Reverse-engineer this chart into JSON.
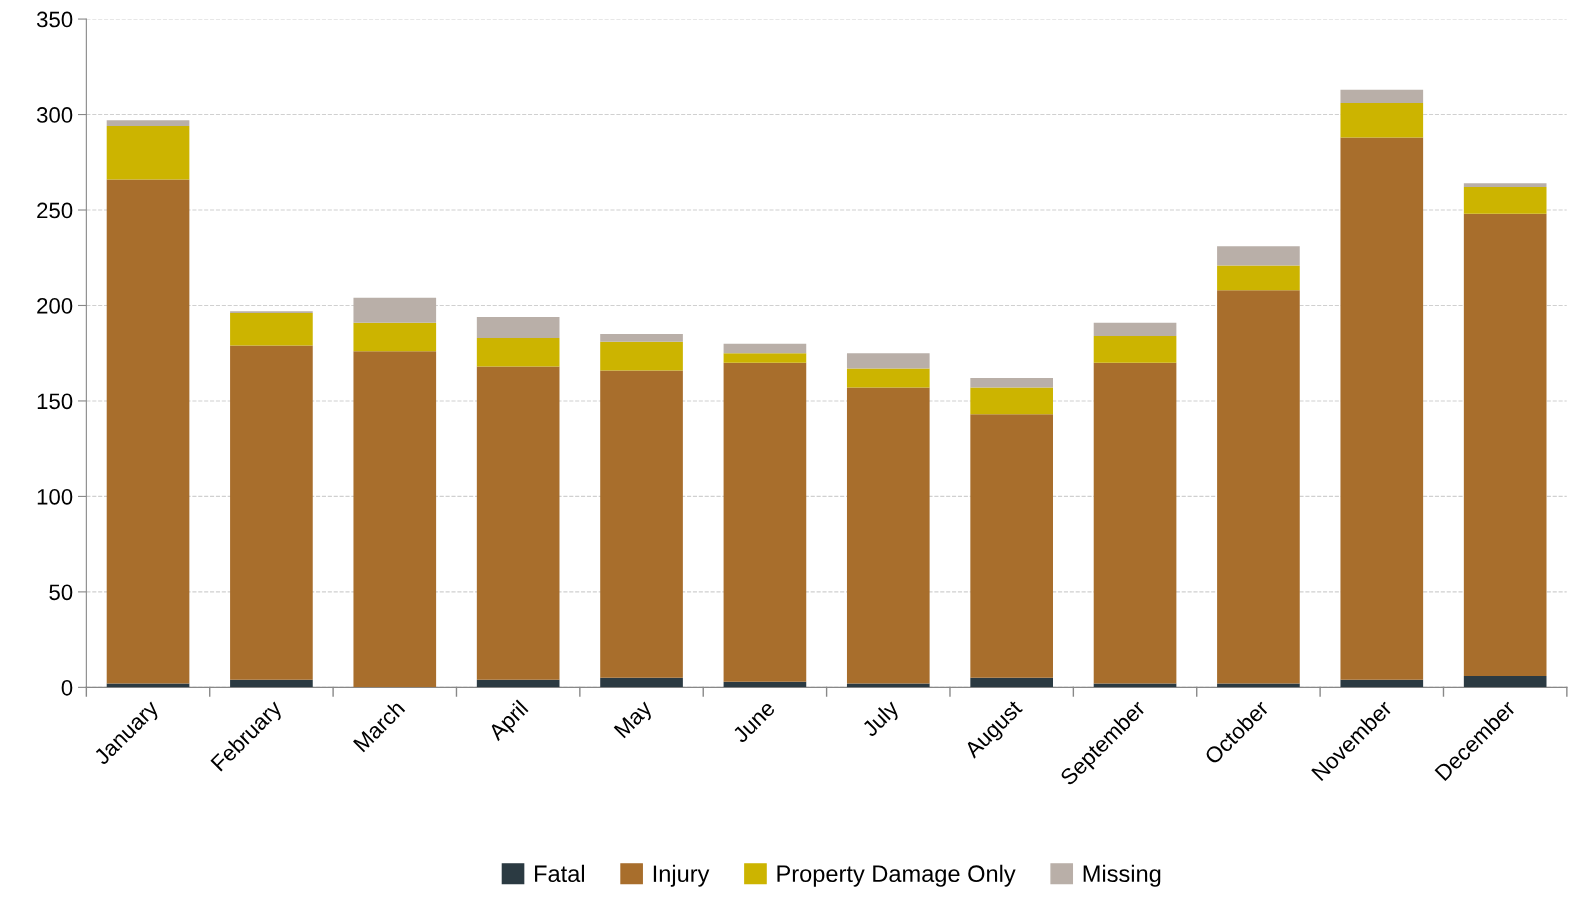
{
  "chart_data": {
    "type": "bar",
    "stacked": true,
    "categories": [
      "January",
      "February",
      "March",
      "April",
      "May",
      "June",
      "July",
      "August",
      "September",
      "October",
      "November",
      "December"
    ],
    "series": [
      {
        "name": "Fatal",
        "color": "#2b3a42",
        "values": [
          2,
          4,
          0,
          4,
          5,
          3,
          2,
          5,
          2,
          2,
          4,
          6
        ]
      },
      {
        "name": "Injury",
        "color": "#a86e2c",
        "values": [
          264,
          175,
          176,
          164,
          161,
          167,
          155,
          138,
          168,
          206,
          284,
          242
        ]
      },
      {
        "name": "Property Damage Only",
        "color": "#ccb400",
        "values": [
          28,
          17,
          15,
          15,
          15,
          5,
          10,
          14,
          14,
          13,
          18,
          14
        ]
      },
      {
        "name": "Missing",
        "color": "#b9afa8",
        "values": [
          3,
          1,
          13,
          11,
          4,
          5,
          8,
          5,
          7,
          10,
          7,
          2
        ]
      }
    ],
    "ylim": [
      0,
      350
    ],
    "yticks": [
      0,
      50,
      100,
      150,
      200,
      250,
      300,
      350
    ],
    "grid": "y",
    "legend": "bottom"
  }
}
